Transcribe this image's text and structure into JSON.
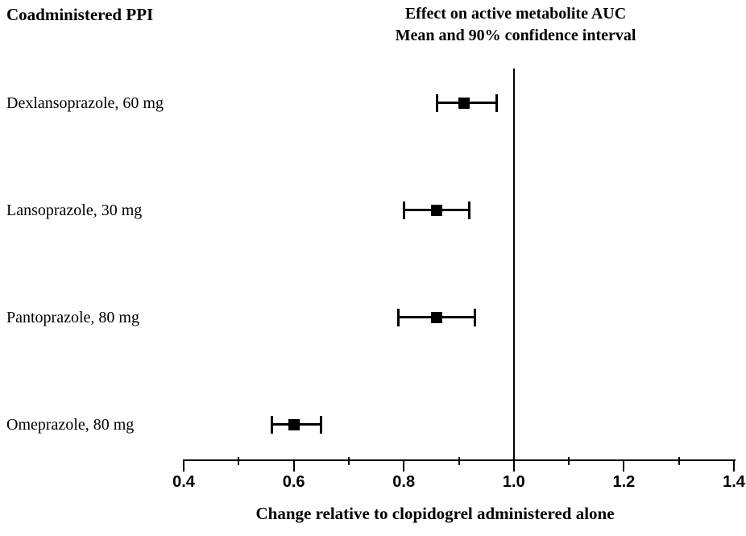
{
  "left_header": "Coadministered PPI",
  "title": {
    "line1": "Effect on active metabolite AUC",
    "line2": "Mean and 90% confidence interval"
  },
  "chart_data": {
    "type": "forest",
    "title": "Effect on active metabolite AUC",
    "subtitle": "Mean and 90% confidence interval",
    "xlabel": "Change relative to clopidogrel  administered alone",
    "xlim": [
      0.4,
      1.4
    ],
    "x_major_ticks": [
      0.4,
      0.6,
      0.8,
      1.0,
      1.2,
      1.4
    ],
    "x_minor_ticks": [
      0.5,
      0.7,
      0.9,
      1.1,
      1.3
    ],
    "reference_line_x": 1.0,
    "grid": false,
    "legend_position": "none",
    "marker_color": "#000000",
    "rows": [
      {
        "label": "Dexlansoprazole, 60 mg",
        "mean": 0.91,
        "ci_low": 0.86,
        "ci_high": 0.97
      },
      {
        "label": "Lansoprazole, 30 mg",
        "mean": 0.86,
        "ci_low": 0.8,
        "ci_high": 0.92
      },
      {
        "label": "Pantoprazole, 80 mg",
        "mean": 0.86,
        "ci_low": 0.79,
        "ci_high": 0.93
      },
      {
        "label": "Omeprazole, 80 mg",
        "mean": 0.6,
        "ci_low": 0.56,
        "ci_high": 0.65
      }
    ]
  }
}
